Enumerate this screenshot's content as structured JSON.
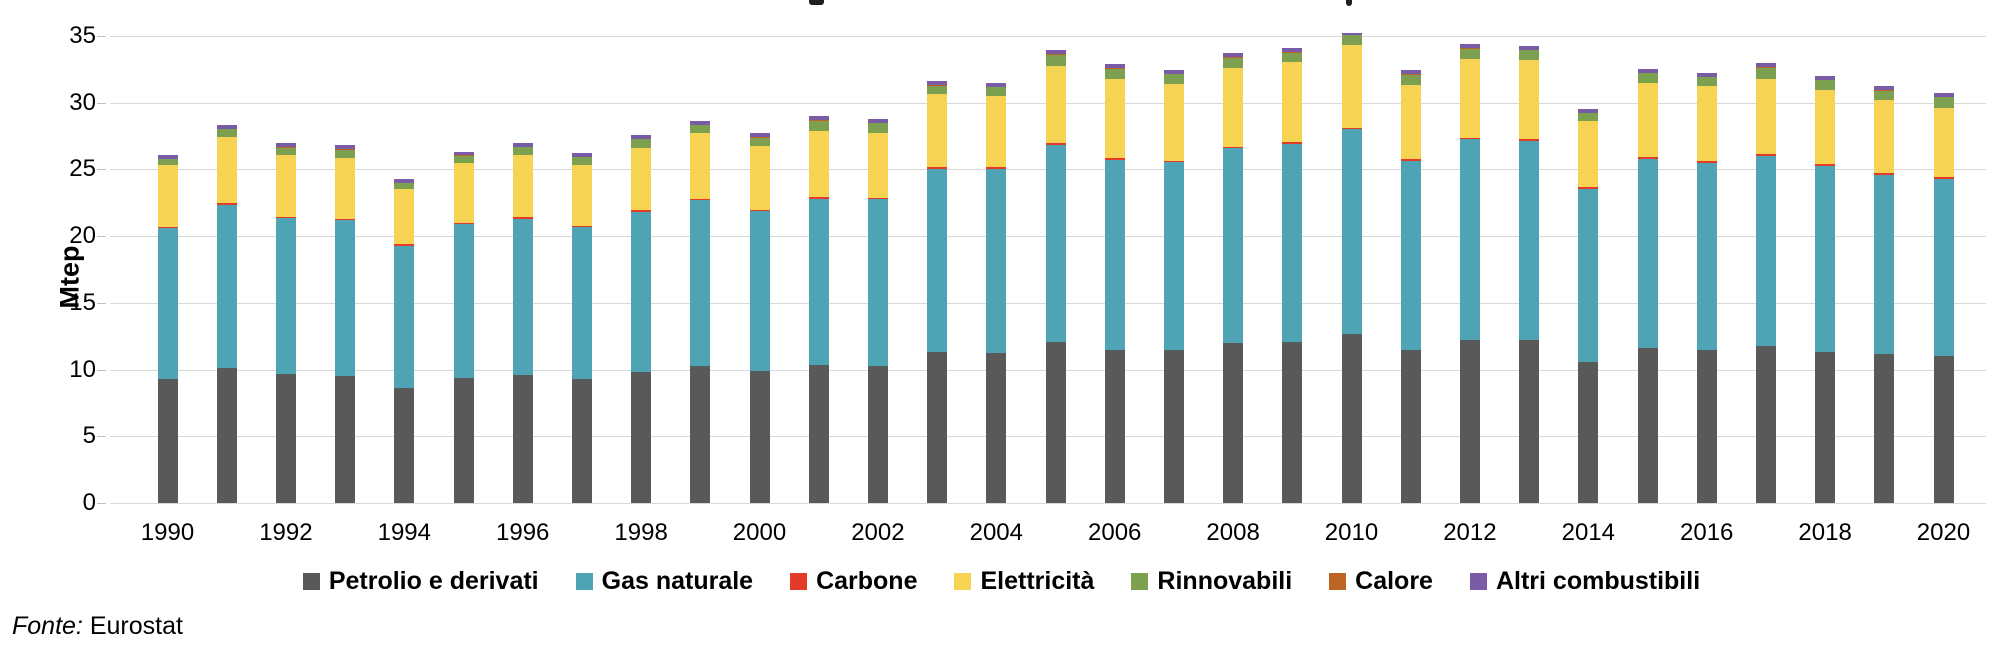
{
  "chart_data": {
    "type": "bar",
    "stacked": true,
    "ylabel": "Mtep",
    "ylim": [
      0,
      35
    ],
    "yticks": [
      0,
      5,
      10,
      15,
      20,
      25,
      30,
      35
    ],
    "grid": true,
    "legend_position": "bottom",
    "xtick_label_step": 2,
    "categories": [
      1990,
      1991,
      1992,
      1993,
      1994,
      1995,
      1996,
      1997,
      1998,
      1999,
      2000,
      2001,
      2002,
      2003,
      2004,
      2005,
      2006,
      2007,
      2008,
      2009,
      2010,
      2011,
      2012,
      2013,
      2014,
      2015,
      2016,
      2017,
      2018,
      2019,
      2020
    ],
    "series": [
      {
        "name": "Petrolio e derivati",
        "color": "#595959",
        "values": [
          9.3,
          10.1,
          9.65,
          9.55,
          8.6,
          9.4,
          9.6,
          9.3,
          9.85,
          10.25,
          9.9,
          10.35,
          10.3,
          11.3,
          11.25,
          12.1,
          11.5,
          11.5,
          12.0,
          12.05,
          12.65,
          11.5,
          12.2,
          12.25,
          10.55,
          11.6,
          11.5,
          11.8,
          11.35,
          11.15,
          11.0
        ]
      },
      {
        "name": "Gas naturale",
        "color": "#4ea3b5",
        "values": [
          11.3,
          12.25,
          11.7,
          11.65,
          10.7,
          11.5,
          11.7,
          11.35,
          11.95,
          12.45,
          11.95,
          12.45,
          12.45,
          13.75,
          13.8,
          14.7,
          14.2,
          14.05,
          14.6,
          14.85,
          15.35,
          14.1,
          15.05,
          14.9,
          13.0,
          14.2,
          14.0,
          14.2,
          13.9,
          13.4,
          13.3
        ]
      },
      {
        "name": "Carbone",
        "color": "#e23c29",
        "values": [
          0.12,
          0.15,
          0.12,
          0.12,
          0.12,
          0.12,
          0.12,
          0.12,
          0.13,
          0.12,
          0.12,
          0.12,
          0.12,
          0.17,
          0.12,
          0.17,
          0.15,
          0.12,
          0.12,
          0.14,
          0.12,
          0.15,
          0.1,
          0.1,
          0.17,
          0.12,
          0.13,
          0.18,
          0.18,
          0.15,
          0.12
        ]
      },
      {
        "name": "Elettricità",
        "color": "#f7d354",
        "values": [
          4.6,
          4.9,
          4.6,
          4.55,
          4.1,
          4.5,
          4.7,
          4.6,
          4.7,
          4.9,
          4.8,
          5.0,
          4.9,
          5.45,
          5.3,
          5.8,
          5.95,
          5.75,
          5.85,
          6.0,
          6.2,
          5.55,
          5.95,
          5.95,
          4.9,
          5.55,
          5.6,
          5.6,
          5.5,
          5.5,
          5.2
        ]
      },
      {
        "name": "Rinnovabili",
        "color": "#7ca04f",
        "values": [
          0.45,
          0.63,
          0.55,
          0.6,
          0.45,
          0.5,
          0.55,
          0.55,
          0.62,
          0.62,
          0.62,
          0.75,
          0.7,
          0.6,
          0.7,
          0.82,
          0.75,
          0.7,
          0.82,
          0.7,
          0.75,
          0.8,
          0.75,
          0.75,
          0.6,
          0.75,
          0.7,
          0.85,
          0.75,
          0.7,
          0.8
        ]
      },
      {
        "name": "Calore",
        "color": "#bd6524",
        "values": [
          0.03,
          0.03,
          0.03,
          0.03,
          0.03,
          0.03,
          0.03,
          0.03,
          0.03,
          0.03,
          0.03,
          0.03,
          0.03,
          0.03,
          0.03,
          0.03,
          0.03,
          0.03,
          0.03,
          0.03,
          0.03,
          0.03,
          0.03,
          0.03,
          0.03,
          0.03,
          0.03,
          0.03,
          0.03,
          0.03,
          0.03
        ]
      },
      {
        "name": "Altri combustibili",
        "color": "#7a5ba6",
        "values": [
          0.25,
          0.3,
          0.3,
          0.3,
          0.25,
          0.27,
          0.3,
          0.28,
          0.3,
          0.3,
          0.3,
          0.3,
          0.27,
          0.3,
          0.3,
          0.3,
          0.3,
          0.3,
          0.3,
          0.3,
          0.15,
          0.3,
          0.3,
          0.3,
          0.3,
          0.3,
          0.3,
          0.3,
          0.3,
          0.3,
          0.3
        ]
      }
    ]
  },
  "source": {
    "prefix": "Fonte:",
    "text": " Eurostat"
  },
  "colors": {
    "gridline": "#d9d9d9",
    "text": "#000000"
  }
}
